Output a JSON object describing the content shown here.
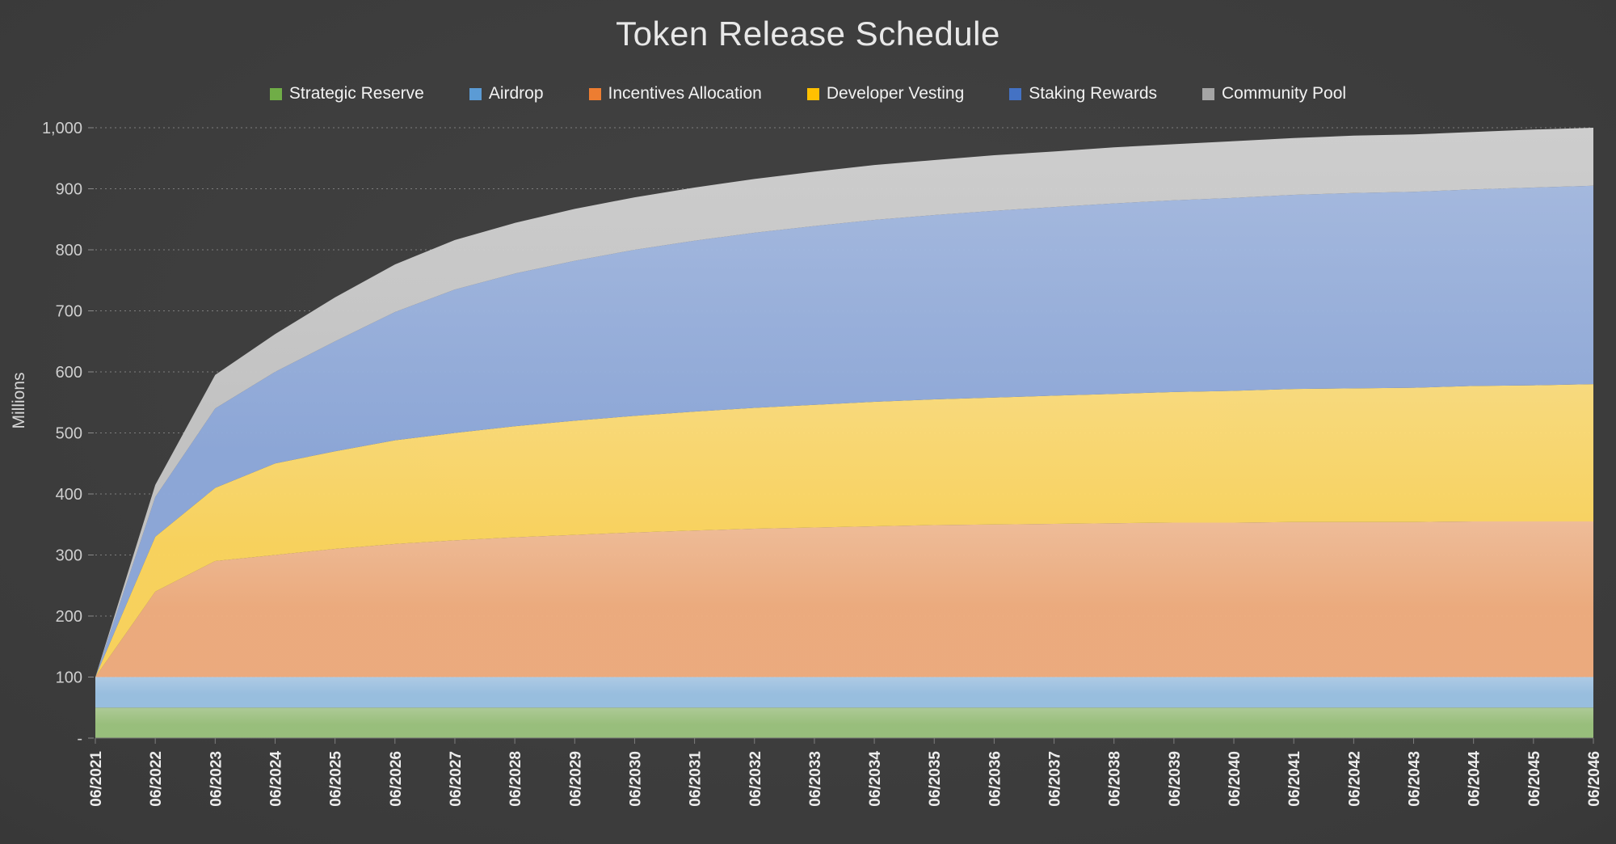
{
  "title": "Token Release Schedule",
  "y_axis": {
    "title": "Millions",
    "tick_labels": [
      "-",
      "100",
      "200",
      "300",
      "400",
      "500",
      "600",
      "700",
      "800",
      "900",
      "1,000"
    ]
  },
  "chart_data": {
    "type": "area",
    "stacked": true,
    "title": "Token Release Schedule",
    "ylabel": "Millions",
    "ylim": [
      0,
      1000
    ],
    "ytick_step": 100,
    "grid": "dotted-horizontal",
    "legend_position": "top",
    "x": [
      "06/2021",
      "06/2022",
      "06/2023",
      "06/2024",
      "06/2025",
      "06/2026",
      "06/2027",
      "06/2028",
      "06/2029",
      "06/2030",
      "06/2031",
      "06/2032",
      "06/2033",
      "06/2034",
      "06/2035",
      "06/2036",
      "06/2037",
      "06/2038",
      "06/2039",
      "06/2040",
      "06/2041",
      "06/2042",
      "06/2043",
      "06/2044",
      "06/2045",
      "06/2046"
    ],
    "series": [
      {
        "name": "Strategic Reserve",
        "marker": "#70AD47",
        "fill": "#9CC37E",
        "values": [
          50,
          50,
          50,
          50,
          50,
          50,
          50,
          50,
          50,
          50,
          50,
          50,
          50,
          50,
          50,
          50,
          50,
          50,
          50,
          50,
          50,
          50,
          50,
          50,
          50,
          50
        ]
      },
      {
        "name": "Airdrop",
        "marker": "#5B9BD5",
        "fill": "#9CC3E5",
        "values": [
          50,
          50,
          50,
          50,
          50,
          50,
          50,
          50,
          50,
          50,
          50,
          50,
          50,
          50,
          50,
          50,
          50,
          50,
          50,
          50,
          50,
          50,
          50,
          50,
          50,
          50
        ]
      },
      {
        "name": "Incentives Allocation",
        "marker": "#ED7D31",
        "fill": "#F2AF80",
        "values": [
          0,
          140,
          190,
          200,
          210,
          218,
          224,
          229,
          233,
          237,
          240,
          243,
          245,
          247,
          249,
          250,
          251,
          252,
          253,
          253,
          254,
          254,
          254,
          255,
          255,
          255
        ]
      },
      {
        "name": "Developer Vesting",
        "marker": "#FFC000",
        "fill": "#FFD75E",
        "values": [
          0,
          90,
          120,
          150,
          160,
          170,
          176,
          182,
          187,
          191,
          195,
          198,
          201,
          204,
          206,
          208,
          210,
          212,
          214,
          216,
          218,
          219,
          220,
          222,
          223,
          225
        ]
      },
      {
        "name": "Staking Rewards",
        "marker": "#4472C4",
        "fill": "#8FAADC",
        "values": [
          0,
          65,
          130,
          150,
          180,
          210,
          235,
          250,
          262,
          272,
          280,
          287,
          293,
          298,
          302,
          306,
          309,
          312,
          314,
          316,
          318,
          320,
          321,
          322,
          324,
          325
        ]
      },
      {
        "name": "Community Pool",
        "marker": "#A5A5A5",
        "fill": "#C7C7C7",
        "values": [
          0,
          20,
          55,
          62,
          72,
          78,
          81,
          83,
          85,
          86,
          87,
          88,
          89,
          90,
          90,
          91,
          91,
          92,
          92,
          93,
          93,
          94,
          94,
          94,
          95,
          95
        ]
      }
    ]
  }
}
